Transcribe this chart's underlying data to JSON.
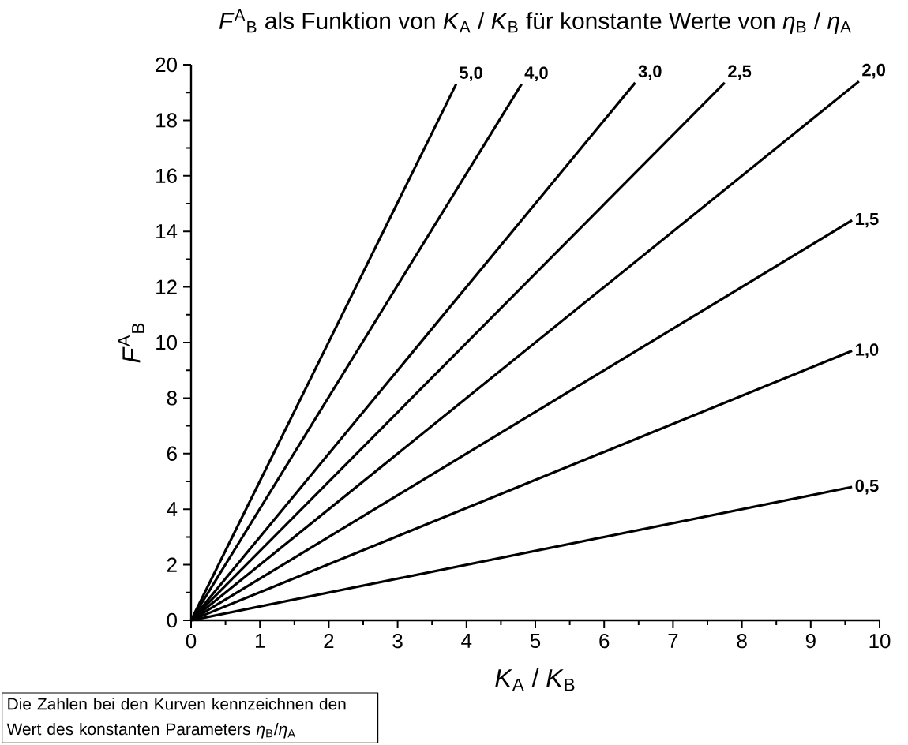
{
  "chart_data": {
    "type": "line",
    "title": "*F*$^{A}$$_{B}$ als Funktion von *K*$_{A}$ / *K*$_{B}$ für konstante Werte von *η*$_{B}$ / *η*$_{A}$",
    "xlabel": "*K*$_{A}$ / *K*$_{B}$",
    "ylabel": "*F*$^{A}$$_{B}$",
    "annotations": [
      "Die Zahlen bei den Kurven kennzeichnen den Wert des konstanten Parameters *η*$_{B}$/*η*$_{A}$"
    ],
    "xlim": [
      0,
      10
    ],
    "ylim": [
      0,
      20
    ],
    "xticks": [
      0,
      1,
      2,
      3,
      4,
      5,
      6,
      7,
      8,
      9,
      10
    ],
    "yticks": [
      0,
      2,
      4,
      6,
      8,
      10,
      12,
      14,
      16,
      18,
      20
    ],
    "marker": "none",
    "line_style": "solid",
    "legend": false,
    "series": [
      {
        "name": "5,0",
        "color": "#000000",
        "x": [
          0,
          3.85
        ],
        "values": [
          0,
          19.3
        ]
      },
      {
        "name": "4,0",
        "color": "#000000",
        "x": [
          0,
          4.8
        ],
        "values": [
          0,
          19.3
        ]
      },
      {
        "name": "3,0",
        "color": "#000000",
        "x": [
          0,
          6.45
        ],
        "values": [
          0,
          19.35
        ]
      },
      {
        "name": "2,5",
        "color": "#000000",
        "x": [
          0,
          7.75
        ],
        "values": [
          0,
          19.35
        ]
      },
      {
        "name": "2,0",
        "color": "#000000",
        "x": [
          0,
          9.7
        ],
        "values": [
          0,
          19.4
        ]
      },
      {
        "name": "1,5",
        "color": "#000000",
        "x": [
          0,
          9.6
        ],
        "values": [
          0,
          14.4
        ]
      },
      {
        "name": "1,0",
        "color": "#000000",
        "x": [
          0,
          9.6
        ],
        "values": [
          0,
          9.7
        ]
      },
      {
        "name": "0,5",
        "color": "#000000",
        "x": [
          0,
          9.6
        ],
        "values": [
          0,
          4.8
        ]
      }
    ]
  }
}
